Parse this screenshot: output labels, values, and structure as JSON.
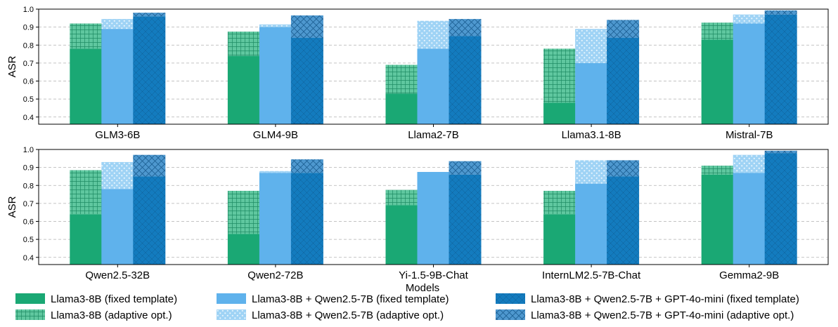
{
  "chart_data": {
    "type": "bar",
    "variant": "stacked-grouped",
    "xlabel": "Models",
    "ylabel": "ASR",
    "ylim": [
      0.36,
      1.0
    ],
    "yticks": [
      "0.4",
      "0.5",
      "0.6",
      "0.7",
      "0.8",
      "0.9",
      "1.0"
    ],
    "grid": "horizontal dashed",
    "legend_position": "bottom",
    "legend": [
      "Llama3-8B (fixed template)",
      "Llama3-8B (adaptive opt.)",
      "Llama3-8B + Qwen2.5-7B (fixed template)",
      "Llama3-8B + Qwen2.5-7B (adaptive opt.)",
      "Llama3-8B + Qwen2.5-7B + GPT-4o-mini (fixed template)",
      "Llama3-8B + Qwen2.5-7B + GPT-4o-mini (adaptive opt.)"
    ],
    "colors": {
      "llama3_fixed": "#1aa874",
      "llama3_adaptive": "#5fc79f",
      "qwen_fixed": "#5fb2ec",
      "qwen_adaptive": "#9fd3f5",
      "gpt_fixed": "#137bbe",
      "gpt_adaptive": "#4e98cf"
    },
    "panels": [
      {
        "categories": [
          "GLM3-6B",
          "GLM4-9B",
          "Llama2-7B",
          "Llama3.1-8B",
          "Mistral-7B"
        ],
        "series": [
          {
            "name": "Llama3-8B",
            "fixed_template": [
              0.78,
              0.74,
              0.53,
              0.48,
              0.83
            ],
            "adaptive_opt": [
              0.92,
              0.875,
              0.69,
              0.78,
              0.925
            ]
          },
          {
            "name": "Llama3-8B + Qwen2.5-7B",
            "fixed_template": [
              0.89,
              0.9,
              0.78,
              0.7,
              0.92
            ],
            "adaptive_opt": [
              0.945,
              0.915,
              0.935,
              0.89,
              0.97
            ]
          },
          {
            "name": "Llama3-8B + Qwen2.5-7B + GPT-4o-mini",
            "fixed_template": [
              0.96,
              0.84,
              0.85,
              0.84,
              0.97
            ],
            "adaptive_opt": [
              0.98,
              0.965,
              0.945,
              0.94,
              0.993
            ]
          }
        ]
      },
      {
        "categories": [
          "Qwen2.5-32B",
          "Qwen2-72B",
          "Yi-1.5-9B-Chat",
          "InternLM2.5-7B-Chat",
          "Gemma2-9B"
        ],
        "series": [
          {
            "name": "Llama3-8B",
            "fixed_template": [
              0.64,
              0.53,
              0.69,
              0.64,
              0.86
            ],
            "adaptive_opt": [
              0.885,
              0.77,
              0.775,
              0.77,
              0.91
            ]
          },
          {
            "name": "Llama3-8B + Qwen2.5-7B",
            "fixed_template": [
              0.78,
              0.87,
              0.875,
              0.81,
              0.87
            ],
            "adaptive_opt": [
              0.93,
              0.88,
              0.875,
              0.94,
              0.97
            ]
          },
          {
            "name": "Llama3-8B + Qwen2.5-7B + GPT-4o-mini",
            "fixed_template": [
              0.85,
              0.87,
              0.86,
              0.85,
              0.98
            ],
            "adaptive_opt": [
              0.97,
              0.945,
              0.935,
              0.94,
              0.993
            ]
          }
        ]
      }
    ]
  }
}
